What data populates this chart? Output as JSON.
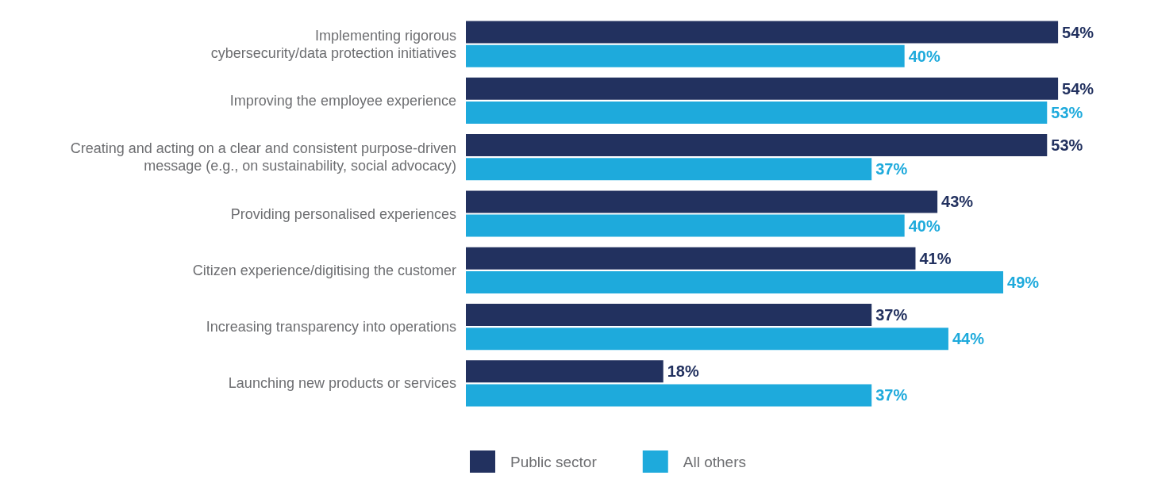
{
  "chart_data": {
    "type": "bar",
    "orientation": "horizontal",
    "categories": [
      "Implementing rigorous\ncybersecurity/data protection initiatives",
      "Improving the employee experience",
      "Creating and acting on a clear and consistent purpose-driven\nmessage (e.g., on sustainability, social advocacy)",
      "Providing personalised experiences",
      "Citizen experience/digitising the customer",
      "Increasing transparency into operations",
      "Launching new products or services"
    ],
    "series": [
      {
        "name": "Public sector",
        "color": "#22315f",
        "values": [
          54,
          54,
          53,
          43,
          41,
          37,
          18
        ],
        "value_labels": [
          "54%",
          "54%",
          "53%",
          "43%",
          "41%",
          "37%",
          "18%"
        ]
      },
      {
        "name": "All others",
        "color": "#1eaadc",
        "values": [
          40,
          53,
          37,
          40,
          49,
          44,
          37
        ],
        "value_labels": [
          "40%",
          "53%",
          "37%",
          "40%",
          "49%",
          "44%",
          "37%"
        ]
      }
    ],
    "tick_labels": "y",
    "legend": "bottom"
  }
}
